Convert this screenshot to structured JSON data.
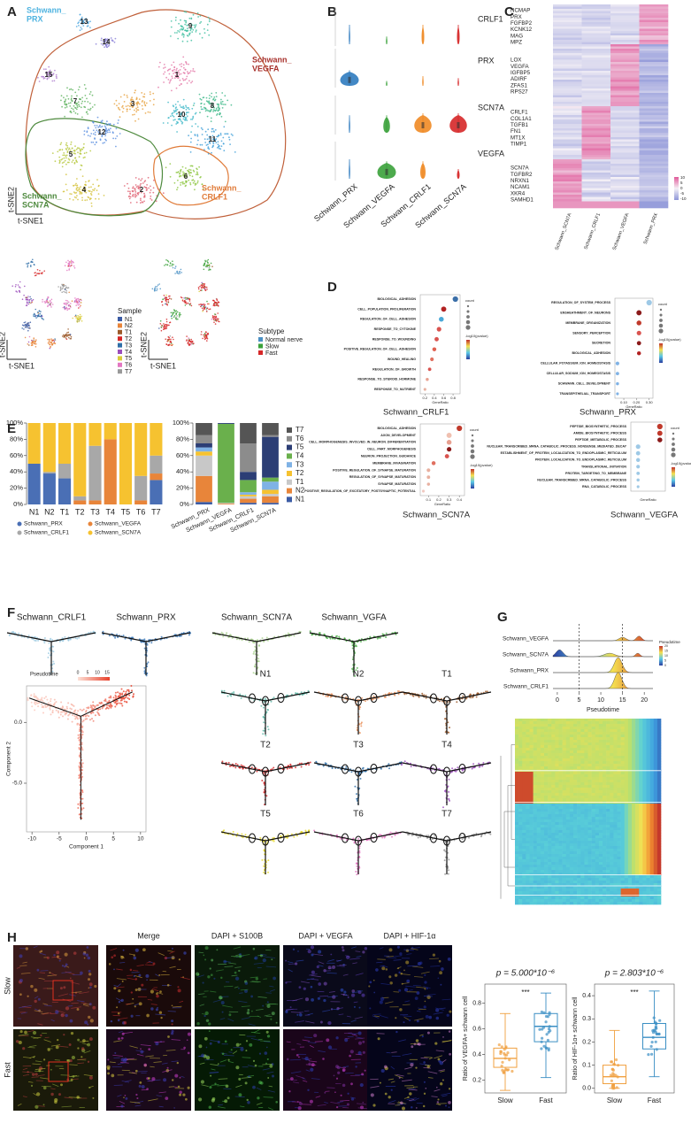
{
  "panel_labels": [
    "A",
    "B",
    "C",
    "D",
    "E",
    "F",
    "G",
    "H"
  ],
  "tsne": {
    "clusters": [
      "1",
      "2",
      "3",
      "4",
      "5",
      "6",
      "7",
      "8",
      "9",
      "10",
      "11",
      "12",
      "13",
      "14",
      "15"
    ],
    "regions": [
      {
        "lines": [
          "Schwann_",
          "PRX"
        ],
        "color": "#4fb3e0"
      },
      {
        "lines": [
          "Schwann_",
          "VEGFA"
        ],
        "color": "#a8322d"
      },
      {
        "lines": [
          "Schwann_",
          "SCN7A"
        ],
        "color": "#4e8a3e"
      },
      {
        "lines": [
          "Schwann_",
          "CRLF1"
        ],
        "color": "#e07b39"
      }
    ],
    "x_label": "t-SNE1",
    "y_label": "t-SNE2",
    "sample_title": "Sample",
    "samples": [
      "N1",
      "N2",
      "T1",
      "T2",
      "T3",
      "T4",
      "T5",
      "T6",
      "T7"
    ],
    "sample_colors": [
      "#3b5ba5",
      "#e8853a",
      "#9c5a2a",
      "#d62728",
      "#2f6fa8",
      "#9b4dbb",
      "#d9cc3a",
      "#e377c2",
      "#999999"
    ],
    "subtype_title": "Subtype",
    "subtypes": [
      "Normal nerve",
      "Slow",
      "Fast"
    ],
    "subtype_colors": [
      "#4a90c4",
      "#3aa13a",
      "#d62728"
    ]
  },
  "violin": {
    "genes": [
      "CRLF1",
      "PRX",
      "SCN7A",
      "VEGFA"
    ],
    "groups": [
      "Schwann_PRX",
      "Schwann_VEGFA",
      "Schwann_CRLF1",
      "Schwann_SCN7A"
    ],
    "colors": [
      "#2f7bbf",
      "#3aa13a",
      "#f08a24",
      "#d62728"
    ]
  },
  "heatmap": {
    "genes": [
      "NCMAP",
      "PRX",
      "FGFBP2",
      "KCNK12",
      "MAG",
      "MPZ",
      "LOX",
      "VEGFA",
      "IGFBP5",
      "ADIRF",
      "ZFAS1",
      "RPS27",
      "CRLF1",
      "COL1A1",
      "TGFB1",
      "FN1",
      "MT1X",
      "TIMP1",
      "SCN7A",
      "TGFBR2",
      "NRXN1",
      "NCAM1",
      "XKR4",
      "SAMHD1"
    ],
    "groups": [
      "Schwann_SCN7A",
      "Schwann_CRLF1",
      "Schwann_VEGFA",
      "Schwann_PRX"
    ],
    "scale_ticks": [
      10,
      5,
      0,
      -5,
      -10
    ]
  },
  "go_labels": {
    "count": "count",
    "color": "-log10(pvalue)",
    "x": "GeneRatio"
  },
  "go": [
    {
      "title": "Schwann_CRLF1",
      "terms": [
        "BIOLOGICAL_ADHESION",
        "CELL_POPULATION_PROLIFERATION",
        "REGULATION_OF_CELL_ADHESION",
        "RESPONSE_TO_CYTOKINE",
        "RESPONSE_TO_WOUNDING",
        "POSITIVE_REGULATION_OF_CELL_ADHESION",
        "WOUND_HEALING",
        "REGULATION_OF_GROWTH",
        "RESPONSE_TO_STEROID_HORMONE",
        "RESPONSE_TO_NUTRIENT"
      ],
      "gene_ratio": [
        0.85,
        0.6,
        0.55,
        0.5,
        0.45,
        0.4,
        0.35,
        0.3,
        0.25,
        0.2
      ],
      "colors": [
        "#3b6fa8",
        "#b22222",
        "#4aa8d8",
        "#d9534f",
        "#d9534f",
        "#e06050",
        "#e07060",
        "#d9534f",
        "#e8a090",
        "#e8b0a0"
      ],
      "xlim": [
        0.1,
        0.95
      ],
      "xticks": [
        0.2,
        0.4,
        0.6,
        0.8
      ]
    },
    {
      "title": "Schwann_PRX",
      "terms": [
        "REGULATION_OF_SYSTEM_PROCESS",
        "ENSHEATHMENT_OF_NEURONS",
        "MEMBRANE_ORGANIZATION",
        "SENSORY_PERCEPTION",
        "SECRETION",
        "BIOLOGICAL_ADHESION",
        "CELLULAR_POTASSIUM_ION_HOMEOSTASIS",
        "CELLULAR_SODIUM_ION_HOMEOSTASIS",
        "SCHWANN_CELL_DEVELOPMENT",
        "TRANSEPITHELIAL_TRANSPORT"
      ],
      "gene_ratio": [
        0.3,
        0.22,
        0.22,
        0.22,
        0.22,
        0.22,
        0.05,
        0.05,
        0.05,
        0.05
      ],
      "colors": [
        "#9ec9e6",
        "#8b1a1a",
        "#c0392b",
        "#d9534f",
        "#8b1a1a",
        "#b22222",
        "#7fb2e5",
        "#7fb2e5",
        "#7fb2e5",
        "#7fb2e5"
      ],
      "xlim": [
        0.03,
        0.33
      ],
      "xticks": [
        {
          "value": 0.1,
          "label": "0.10"
        },
        {
          "value": 0.2,
          "label": "0.20"
        },
        {
          "value": 0.3,
          "label": "0.30"
        }
      ]
    },
    {
      "title": "Schwann_SCN7A",
      "terms": [
        "BIOLOGICAL_ADHESION",
        "AXON_DEVELOPMENT",
        "CELL_MORPHOGENESIS_INVOLVED_IN_NEURON_DIFFERENTIATION",
        "CELL_PART_MORPHOGENESIS",
        "NEURON_PROJECTION_GUIDANCE",
        "MEMBRANE_INVAGINATION",
        "POSITIVE_REGULATION_OF_SYNAPSE_MATURATION",
        "REGULATION_OF_SYNAPSE_MATURATION",
        "SYNAPSE_MATURATION",
        "POSITIVE_REGULATION_OF_EXCITATORY_POSTSYNAPTIC_POTENTIAL"
      ],
      "gene_ratio": [
        0.4,
        0.3,
        0.3,
        0.3,
        0.28,
        0.15,
        0.1,
        0.1,
        0.1,
        0.05
      ],
      "colors": [
        "#c0392b",
        "#f0c0b0",
        "#e8a090",
        "#8b1a1a",
        "#d9534f",
        "#e07060",
        "#e8b0a0",
        "#e8b0a0",
        "#e8b0a0",
        "#f0c8c0"
      ],
      "xlim": [
        0.02,
        0.45
      ],
      "xticks": [
        0.1,
        0.2,
        0.3,
        0.4
      ]
    },
    {
      "title": "Schwann_VEGFA",
      "terms": [
        "PEPTIDE_BIOSYNTHETIC_PROCESS",
        "AMIDE_BIOSYNTHETIC_PROCESS",
        "PEPTIDE_METABOLIC_PROCESS",
        "NUCLEAR_TRANSCRIBED_MRNA_CATABOLIC_PROCESS_NONSENSE_MEDIATED_DECAY",
        "ESTABLISHMENT_OF_PROTEIN_LOCALIZATION_TO_ENDOPLASMIC_RETICULUM",
        "PROTEIN_LOCALIZATION_TO_ENDOPLASMIC_RETICULUM",
        "TRANSLATIONAL_INITIATION",
        "PROTEIN_TARGETING_TO_MEMBRANE",
        "NUCLEAR_TRANSCRIBED_MRNA_CATABOLIC_PROCESS",
        "RNA_CATABOLIC_PROCESS"
      ],
      "gene_ratio": [
        0.11,
        0.11,
        0.11,
        0.05,
        0.05,
        0.05,
        0.05,
        0.05,
        0.05,
        0.05
      ],
      "colors": [
        "#c0392b",
        "#c0392b",
        "#8b1a1a",
        "#9ec9e6",
        "#9ec9e6",
        "#9ec9e6",
        "#9ec9e6",
        "#9ec9e6",
        "#9ec9e6",
        "#9ec9e6"
      ],
      "xlim": [
        0.03,
        0.125
      ]
    }
  ],
  "composition": {
    "categories": [
      "N1",
      "N2",
      "T1",
      "T2",
      "T3",
      "T4",
      "T5",
      "T6",
      "T7"
    ],
    "ylim": [
      0,
      100
    ],
    "yticks": [
      {
        "value": 0,
        "label": "0%"
      },
      {
        "value": 20,
        "label": "20%"
      },
      {
        "value": 40,
        "label": "40%"
      },
      {
        "value": 60,
        "label": "60%"
      },
      {
        "value": 80,
        "label": "80%"
      },
      {
        "value": 100,
        "label": "100%"
      }
    ],
    "series": [
      {
        "name": "Schwann_PRX",
        "color": "#4a6fb5",
        "values": [
          50,
          38,
          32,
          0,
          0,
          0,
          0,
          0,
          30
        ]
      },
      {
        "name": "Schwann_VEGFA",
        "color": "#e8853a",
        "values": [
          0,
          0,
          0,
          5,
          5,
          80,
          0,
          5,
          8
        ]
      },
      {
        "name": "Schwann_CRLF1",
        "color": "#a8a8a8",
        "values": [
          0,
          2,
          18,
          5,
          67,
          0,
          0,
          30,
          22
        ]
      },
      {
        "name": "Schwann_SCN7A",
        "color": "#f6c230",
        "values": [
          50,
          60,
          50,
          90,
          28,
          20,
          100,
          65,
          40
        ]
      }
    ]
  },
  "composition_by_subtype": {
    "categories": [
      "Schwann_PRX",
      "Schwann_VEGFA",
      "Schwann_CRLF1",
      "Schwann_SCN7A"
    ],
    "ylim": [
      0,
      100
    ],
    "yticks": [
      {
        "value": 0,
        "label": "0%"
      },
      {
        "value": 20,
        "label": "20%"
      },
      {
        "value": 40,
        "label": "40%"
      },
      {
        "value": 60,
        "label": "60%"
      },
      {
        "value": 80,
        "label": "80%"
      },
      {
        "value": 100,
        "label": "100%"
      }
    ],
    "series": [
      {
        "name": "N1",
        "color": "#3b5ba5",
        "values": [
          3,
          0,
          2,
          2
        ]
      },
      {
        "name": "N2",
        "color": "#e8853a",
        "values": [
          32,
          1,
          5,
          8
        ]
      },
      {
        "name": "T1",
        "color": "#c8c8c8",
        "values": [
          25,
          1,
          3,
          3
        ]
      },
      {
        "name": "T2",
        "color": "#f6c230",
        "values": [
          5,
          0,
          2,
          5
        ]
      },
      {
        "name": "T3",
        "color": "#7fb2e5",
        "values": [
          5,
          0,
          3,
          10
        ]
      },
      {
        "name": "T4",
        "color": "#6ab04c",
        "values": [
          0,
          97,
          15,
          5
        ]
      },
      {
        "name": "T5",
        "color": "#2c3e75",
        "values": [
          5,
          1,
          10,
          50
        ]
      },
      {
        "name": "T6",
        "color": "#8c8c8c",
        "values": [
          10,
          0,
          35,
          2
        ]
      },
      {
        "name": "T7",
        "color": "#555555",
        "values": [
          15,
          0,
          25,
          15
        ]
      }
    ]
  },
  "trajectory": {
    "subtypes": [
      "Schwann_CRLF1",
      "Schwann_PRX",
      "Schwann_SCN7A",
      "Schwann_VGFA"
    ],
    "subtype_colors": [
      "#9ecae1",
      "#3b78b8",
      "#a9d18e",
      "#4daf4a"
    ],
    "samples": [
      "N1",
      "N2",
      "T1",
      "T2",
      "T3",
      "T4",
      "T5",
      "T6",
      "T7"
    ],
    "sample_colors": [
      "#5fb8a8",
      "#e8905a",
      "#9c5a2a",
      "#d62728",
      "#2f6fa8",
      "#9b4dbb",
      "#e6d82a",
      "#e377c2",
      "#999999"
    ],
    "legend_title": "Pseudotime",
    "legend_ticks": [
      0,
      5,
      10,
      15
    ],
    "x_label": "Component 1",
    "y_label": "Component 2",
    "xlim": [
      -11,
      11
    ],
    "ylim": [
      -9,
      3
    ],
    "xticks": [
      -10,
      -5,
      0,
      5,
      10
    ],
    "yticks": [
      {
        "value": 0,
        "label": "0.0"
      },
      {
        "value": -5,
        "label": "-5.0"
      }
    ]
  },
  "pseudotime": {
    "groups": [
      "Schwann_VEGFA",
      "Schwann_SCN7A",
      "Schwann_PRX",
      "Schwann_CRLF1"
    ],
    "xlim": [
      -1,
      22
    ],
    "xticks": [
      0,
      5,
      10,
      15,
      20
    ],
    "x_label": "Pseudotime",
    "legend_title": "Pseudotime",
    "legend_ticks": [
      0,
      5,
      10,
      15,
      20
    ],
    "cutoffs": [
      5,
      15
    ]
  },
  "microscopy": {
    "columns": [
      "Merge",
      "DAPI + S100B",
      "DAPI + VEGFA",
      "DAPI + HIF-1α"
    ],
    "rows": [
      "Slow",
      "Fast"
    ]
  },
  "boxes": [
    {
      "p_label": "p = 5.000*10⁻⁶",
      "stars": "***",
      "y_label": "Ratio of VEGFA+ schwann cell",
      "ylim": [
        0.1,
        0.95
      ],
      "yticks": [
        0.2,
        0.4,
        0.6,
        0.8
      ],
      "groups": [
        "Slow",
        "Fast"
      ],
      "colors": [
        "#f0a040",
        "#3b8fc4"
      ],
      "stats": [
        [
          0.12,
          0.3,
          0.37,
          0.45,
          0.72
        ],
        [
          0.22,
          0.5,
          0.62,
          0.72,
          0.88
        ]
      ]
    },
    {
      "p_label": "p = 2.803*10⁻⁶",
      "stars": "***",
      "y_label": "Ratio of HIF-1α+ schwann cell",
      "ylim": [
        -0.02,
        0.45
      ],
      "yticks": [
        {
          "value": 0,
          "label": "0.0"
        },
        0.1,
        0.2,
        0.3,
        0.4
      ],
      "groups": [
        "Slow",
        "Fast"
      ],
      "colors": [
        "#f0a040",
        "#3b8fc4"
      ],
      "stats": [
        [
          0,
          0.02,
          0.05,
          0.1,
          0.25
        ],
        [
          0.05,
          0.17,
          0.22,
          0.28,
          0.42
        ]
      ]
    }
  ]
}
